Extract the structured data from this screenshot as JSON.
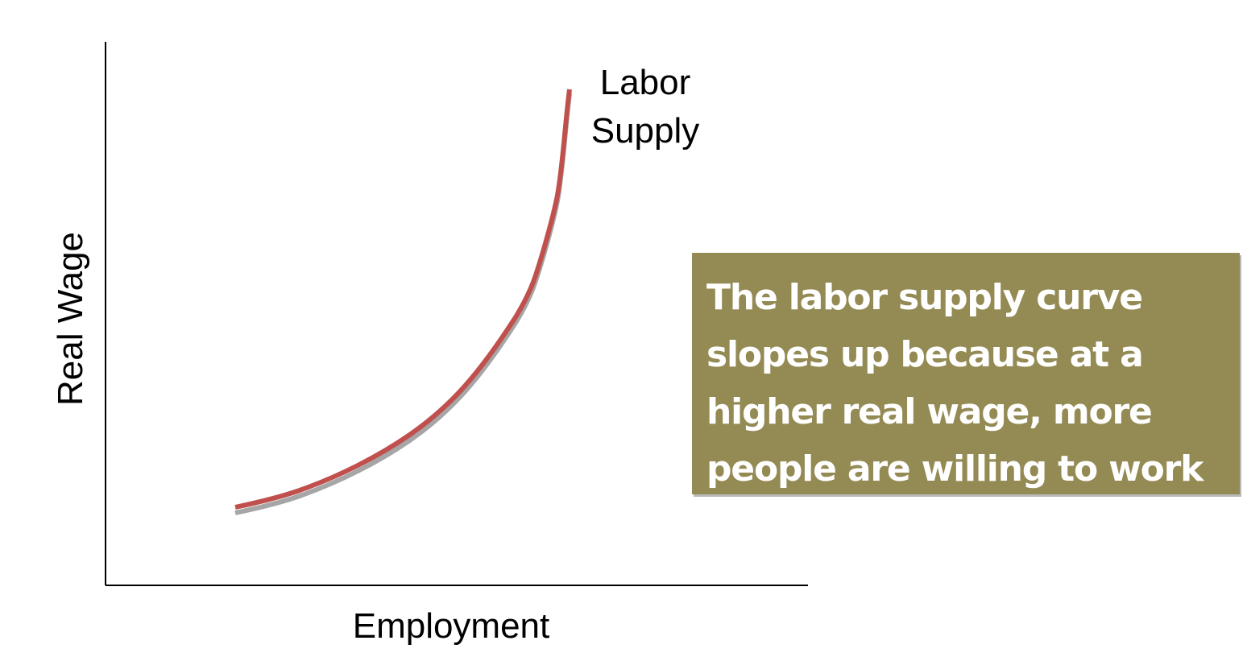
{
  "diagram": {
    "y_axis_label": "Real Wage",
    "x_axis_label": "Employment",
    "curve_label_line1": "Labor",
    "curve_label_line2": "Supply",
    "curve_color": "#c0504d",
    "axis_color": "#000000"
  },
  "callout": {
    "text": "The labor supply curve\nslopes up because at a\nhigher real wage, more\npeople are willing to work",
    "background": "#948a54",
    "text_color": "#ffffff"
  }
}
